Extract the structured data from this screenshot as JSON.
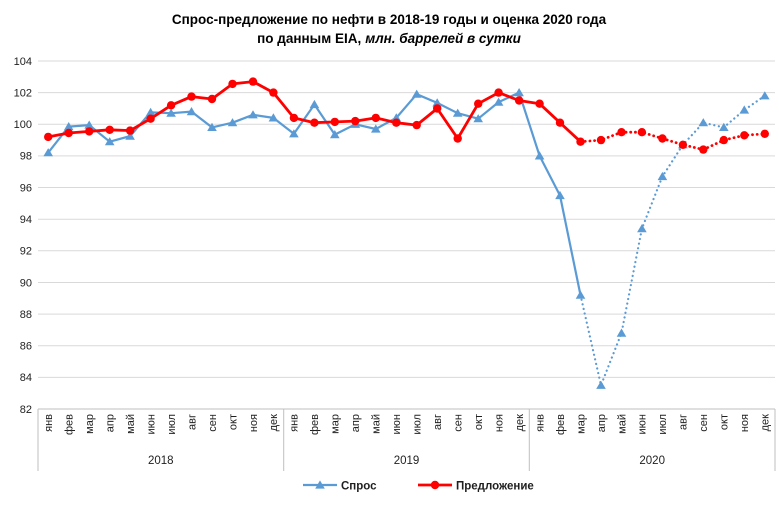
{
  "title": {
    "line1": "Спрос-предложение по нефти в 2018-19 годы и оценка 2020 года",
    "line2_bold": "по данным EIA,",
    "line2_italic": "млн. баррелей в сутки"
  },
  "legend": {
    "demand_label": "Спрос",
    "supply_label": "Предложение"
  },
  "colors": {
    "demand": "#5B9BD5",
    "supply": "#FF0000",
    "grid": "#D9D9D9",
    "axis": "#BFBFBF",
    "text": "#1F1F1F"
  },
  "chart_data": {
    "type": "line",
    "title": "Спрос-предложение по нефти в 2018-19 годы и оценка 2020 года по данным EIA, млн. баррелей в сутки",
    "ylabel": "млн. баррелей в сутки",
    "ylim": [
      82,
      104
    ],
    "ytick_step": 2,
    "grid": true,
    "legend_position": "bottom",
    "years": [
      "2018",
      "2019",
      "2020"
    ],
    "months": [
      "янв",
      "фев",
      "мар",
      "апр",
      "май",
      "июн",
      "июл",
      "авг",
      "сен",
      "окт",
      "ноя",
      "дек"
    ],
    "forecast_start_index": 26,
    "forecast_note": "values after Mar 2020 are drawn dotted (estimate)",
    "series": [
      {
        "name": "Спрос",
        "marker": "triangle",
        "color": "#5B9BD5",
        "line_width": 2.2,
        "values": [
          98.2,
          99.85,
          99.95,
          98.9,
          99.25,
          100.75,
          100.7,
          100.8,
          99.8,
          100.1,
          100.6,
          100.4,
          99.4,
          101.25,
          99.35,
          100.0,
          99.7,
          100.4,
          101.9,
          101.35,
          100.7,
          100.35,
          101.4,
          102.0,
          98.0,
          95.5,
          89.2,
          83.5,
          86.8,
          93.4,
          96.7,
          98.7,
          100.1,
          99.8,
          100.9,
          101.8
        ]
      },
      {
        "name": "Предложение",
        "marker": "circle",
        "color": "#FF0000",
        "line_width": 2.8,
        "values": [
          99.2,
          99.45,
          99.55,
          99.65,
          99.6,
          100.35,
          101.2,
          101.75,
          101.6,
          102.55,
          102.7,
          102.0,
          100.4,
          100.1,
          100.15,
          100.2,
          100.4,
          100.1,
          99.95,
          101.0,
          99.1,
          101.3,
          102.0,
          101.5,
          101.3,
          100.1,
          98.9,
          99.0,
          99.5,
          99.5,
          99.1,
          98.7,
          98.4,
          99.0,
          99.3,
          99.4
        ]
      }
    ]
  }
}
